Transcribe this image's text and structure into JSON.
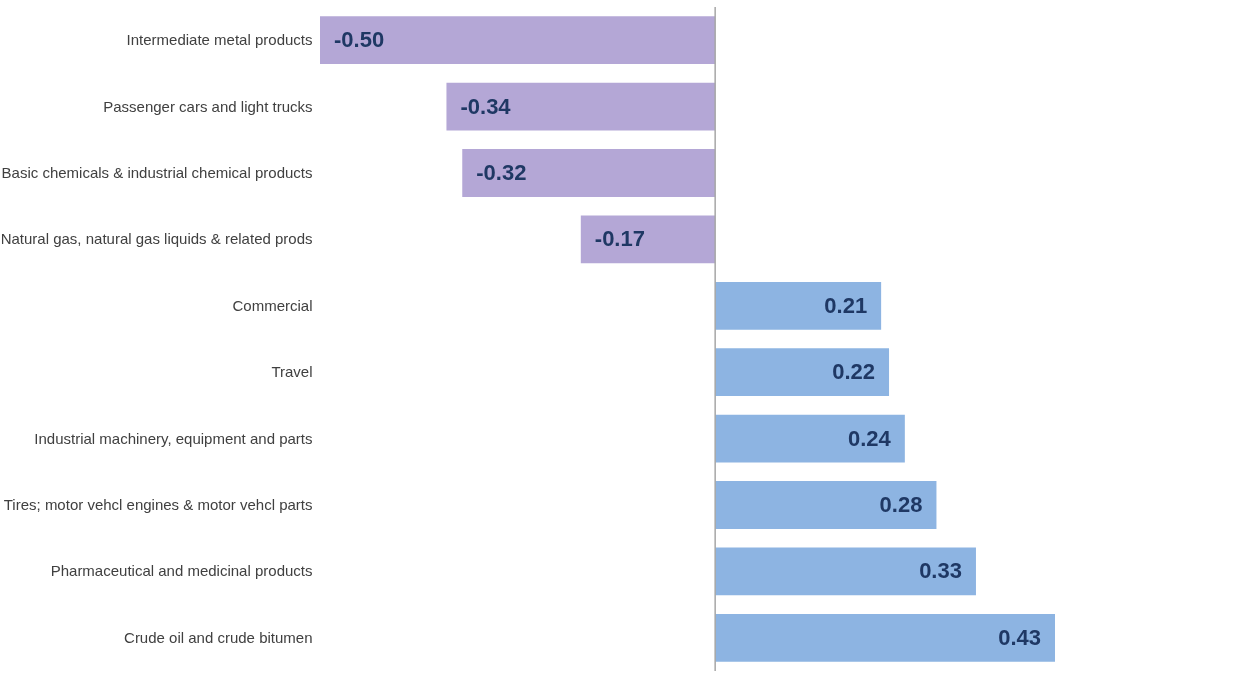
{
  "chart_data": {
    "type": "bar",
    "orientation": "horizontal",
    "categories": [
      "Intermediate metal products",
      "Passenger cars and light trucks",
      "Basic chemicals & industrial chemical products",
      "Natural gas, natural gas liquids & related prods",
      "Commercial",
      "Travel",
      "Industrial machinery, equipment and parts",
      "Tires; motor vehcl engines & motor vehcl parts",
      "Pharmaceutical and medicinal products",
      "Crude oil and crude bitumen"
    ],
    "values": [
      -0.5,
      -0.34,
      -0.32,
      -0.17,
      0.21,
      0.22,
      0.24,
      0.28,
      0.33,
      0.43
    ],
    "value_labels": [
      "-0.50",
      "-0.34",
      "-0.32",
      "-0.17",
      "0.21",
      "0.22",
      "0.24",
      "0.28",
      "0.33",
      "0.43"
    ],
    "colors": [
      "#b4a7d6",
      "#b4a7d6",
      "#b4a7d6",
      "#b4a7d6",
      "#8db4e2",
      "#8db4e2",
      "#8db4e2",
      "#8db4e2",
      "#8db4e2",
      "#8db4e2"
    ]
  }
}
